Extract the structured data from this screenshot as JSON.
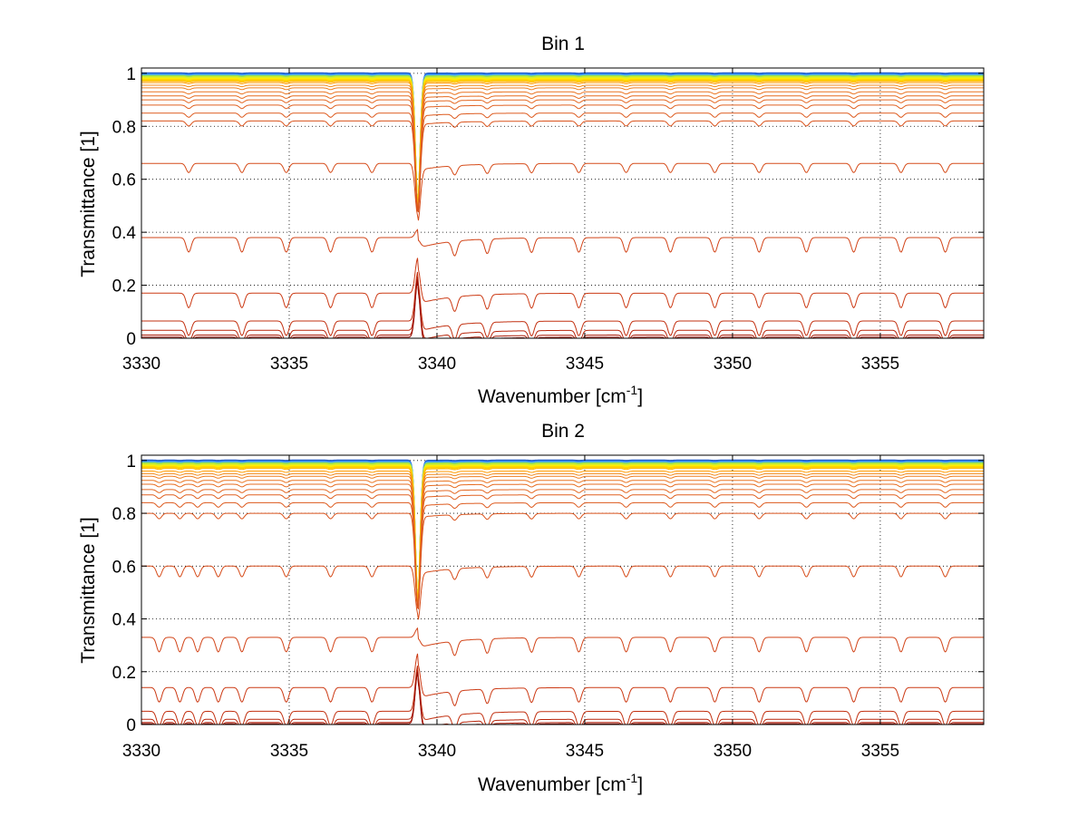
{
  "chart_data": [
    {
      "type": "line",
      "title": "Bin 1",
      "xlabel": "Wavenumber [cm",
      "xlabel_sup": "-1",
      "xlabel_tail": "]",
      "ylabel": "Transmittance [1]",
      "xlim": [
        3330,
        3358.5
      ],
      "ylim": [
        0,
        1.02
      ],
      "xticks": [
        3330,
        3335,
        3340,
        3345,
        3350,
        3355
      ],
      "yticks": [
        0,
        0.2,
        0.4,
        0.6,
        0.8,
        1
      ],
      "ytick_labels": [
        "0",
        "0.2",
        "0.4",
        "0.6",
        "0.8",
        "1"
      ],
      "grid": true,
      "x": [
        3330,
        3340,
        3350,
        3358.5
      ],
      "series_baselines": [
        1.0,
        0.995,
        0.99,
        0.985,
        0.98,
        0.975,
        0.97,
        0.965,
        0.955,
        0.945,
        0.93,
        0.915,
        0.9,
        0.88,
        0.85,
        0.82,
        0.66,
        0.38,
        0.17,
        0.065,
        0.03,
        0.012,
        0.004
      ],
      "series_colors": [
        "#1f5ccf",
        "#3fa0ff",
        "#9be34a",
        "#d8ee2a",
        "#ffee00",
        "#ffd000",
        "#ffb400",
        "#ff9a00",
        "#f08a1c",
        "#ee7e20",
        "#ea7420",
        "#e66c20",
        "#e36620",
        "#e06020",
        "#dd5a1e",
        "#da531c",
        "#d64c1a",
        "#d24418",
        "#cc3a14",
        "#c23010",
        "#b8260c",
        "#aa1c08",
        "#990f05"
      ],
      "main_dip": {
        "x": 3339.35,
        "min_y": 0.44
      },
      "band_lines": [
        3331.6,
        3333.4,
        3334.9,
        3336.4,
        3337.8,
        3339.35,
        3340.6,
        3341.7,
        3343.2,
        3344.8,
        3346.4,
        3347.9,
        3349.4,
        3350.9,
        3352.5,
        3354.1,
        3355.7,
        3357.2
      ]
    },
    {
      "type": "line",
      "title": "Bin 2",
      "xlabel": "Wavenumber [cm",
      "xlabel_sup": "-1",
      "xlabel_tail": "]",
      "ylabel": "Transmittance [1]",
      "xlim": [
        3330,
        3358.5
      ],
      "ylim": [
        0,
        1.02
      ],
      "xticks": [
        3330,
        3335,
        3340,
        3345,
        3350,
        3355
      ],
      "yticks": [
        0,
        0.2,
        0.4,
        0.6,
        0.8,
        1
      ],
      "ytick_labels": [
        "0",
        "0.2",
        "0.4",
        "0.6",
        "0.8",
        "1"
      ],
      "grid": true,
      "x": [
        3330,
        3340,
        3350,
        3358.5
      ],
      "series_baselines": [
        1.0,
        0.995,
        0.99,
        0.985,
        0.98,
        0.975,
        0.97,
        0.96,
        0.95,
        0.94,
        0.925,
        0.91,
        0.89,
        0.87,
        0.84,
        0.8,
        0.6,
        0.33,
        0.14,
        0.05,
        0.02,
        0.008,
        0.003
      ],
      "series_colors": [
        "#1f5ccf",
        "#3fa0ff",
        "#9be34a",
        "#d8ee2a",
        "#ffee00",
        "#ffd000",
        "#ffb400",
        "#ff9a00",
        "#f08a1c",
        "#ee7e20",
        "#ea7420",
        "#e66c20",
        "#e36620",
        "#e06020",
        "#dd5a1e",
        "#da531c",
        "#d64c1a",
        "#d24418",
        "#cc3a14",
        "#c23010",
        "#b8260c",
        "#aa1c08",
        "#990f05"
      ],
      "main_dip": {
        "x": 3339.35,
        "min_y": 0.4
      },
      "band_lines": [
        3330.6,
        3331.3,
        3331.9,
        3332.6,
        3333.4,
        3334.9,
        3336.4,
        3337.8,
        3339.35,
        3340.6,
        3341.7,
        3343.2,
        3344.8,
        3346.4,
        3347.9,
        3349.4,
        3350.9,
        3352.5,
        3354.1,
        3355.7,
        3357.2
      ]
    }
  ]
}
